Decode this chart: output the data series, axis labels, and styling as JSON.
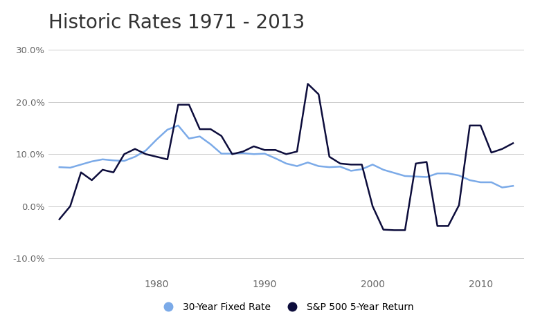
{
  "title": "Historic Rates 1971 - 2013",
  "title_fontsize": 20,
  "background_color": "#ffffff",
  "grid_color": "#cccccc",
  "ylim": [
    -0.13,
    0.32
  ],
  "yticks": [
    -0.1,
    0.0,
    0.1,
    0.2,
    0.3
  ],
  "fixed_rate_color": "#7baae8",
  "sp500_color": "#0d0d3c",
  "fixed_rate_label": "30-Year Fixed Rate",
  "sp500_label": "S&P 500 5-Year Return",
  "years": [
    1971,
    1972,
    1973,
    1974,
    1975,
    1976,
    1977,
    1978,
    1979,
    1980,
    1981,
    1982,
    1983,
    1984,
    1985,
    1986,
    1987,
    1988,
    1989,
    1990,
    1991,
    1992,
    1993,
    1994,
    1995,
    1996,
    1997,
    1998,
    1999,
    2000,
    2001,
    2002,
    2003,
    2004,
    2005,
    2006,
    2007,
    2008,
    2009,
    2010,
    2011,
    2012,
    2013
  ],
  "fixed_rate": [
    0.075,
    0.074,
    0.08,
    0.086,
    0.09,
    0.088,
    0.087,
    0.095,
    0.107,
    0.128,
    0.147,
    0.155,
    0.13,
    0.134,
    0.119,
    0.101,
    0.101,
    0.102,
    0.1,
    0.101,
    0.092,
    0.082,
    0.077,
    0.084,
    0.077,
    0.075,
    0.076,
    0.068,
    0.071,
    0.08,
    0.07,
    0.064,
    0.058,
    0.057,
    0.056,
    0.063,
    0.063,
    0.059,
    0.05,
    0.046,
    0.046,
    0.036,
    0.039
  ],
  "sp500_5yr": [
    -0.025,
    0.0,
    0.065,
    0.05,
    0.07,
    0.065,
    0.1,
    0.11,
    0.1,
    0.095,
    0.09,
    0.195,
    0.195,
    0.148,
    0.148,
    0.135,
    0.1,
    0.105,
    0.115,
    0.108,
    0.108,
    0.1,
    0.105,
    0.235,
    0.215,
    0.095,
    0.082,
    0.08,
    0.08,
    0.0,
    -0.045,
    -0.046,
    -0.046,
    0.082,
    0.085,
    -0.038,
    -0.038,
    0.002,
    0.155,
    0.155,
    0.103,
    0.11,
    0.121
  ]
}
